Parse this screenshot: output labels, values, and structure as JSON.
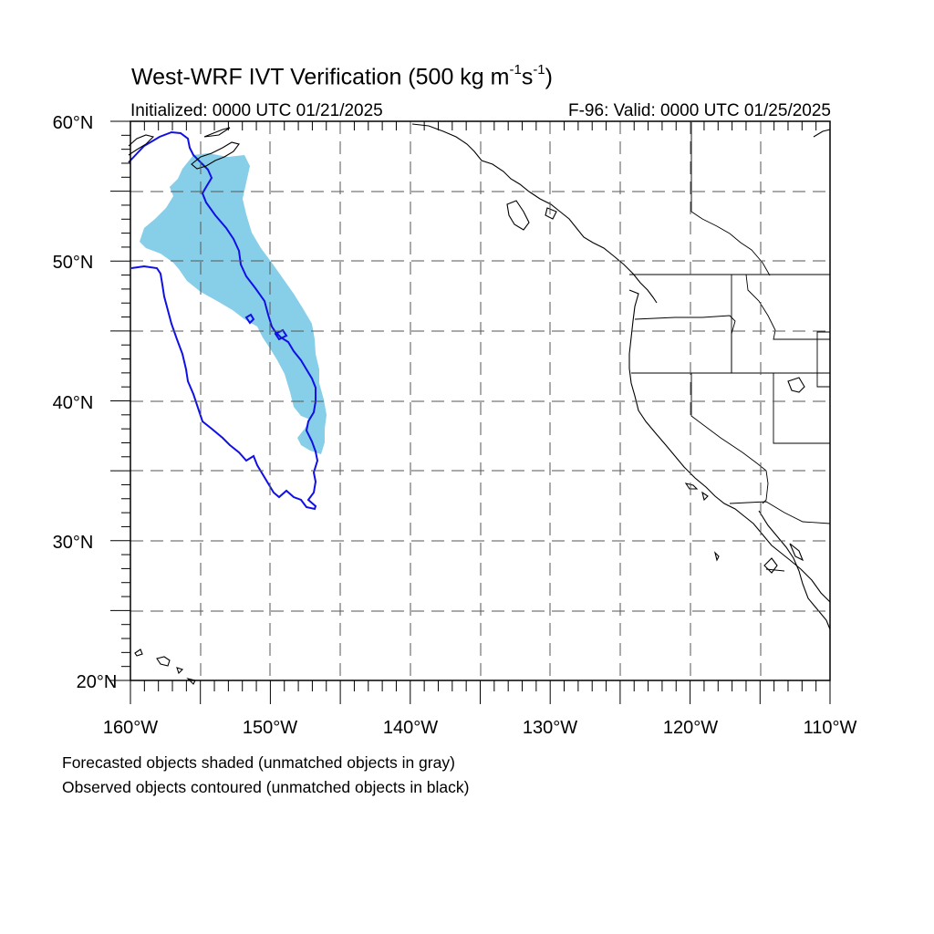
{
  "title": {
    "text": "West-WRF IVT Verification (500 kg m",
    "sup1": "-1",
    "mid": "s",
    "sup2": "-1",
    "end": ")"
  },
  "initialized": "Initialized: 0000 UTC 01/21/2025",
  "valid": "F-96: Valid: 0000 UTC 01/25/2025",
  "axes": {
    "lat_labels": [
      "20°N",
      "30°N",
      "40°N",
      "50°N",
      "60°N"
    ],
    "lon_labels": [
      "160°W",
      "150°W",
      "140°W",
      "130°W",
      "120°W",
      "110°W"
    ],
    "lat_range": [
      20,
      60
    ],
    "lon_range": [
      -160,
      -110
    ],
    "grid": true
  },
  "legend": {
    "forecast": "Forecasted objects shaded (unmatched objects in gray)",
    "observed": "Observed objects contoured (unmatched objects in black)"
  },
  "colors": {
    "forecast_fill": "#87CEE8",
    "observed_contour": "#1010E6",
    "coastline": "#000000",
    "grid": "#555555"
  }
}
